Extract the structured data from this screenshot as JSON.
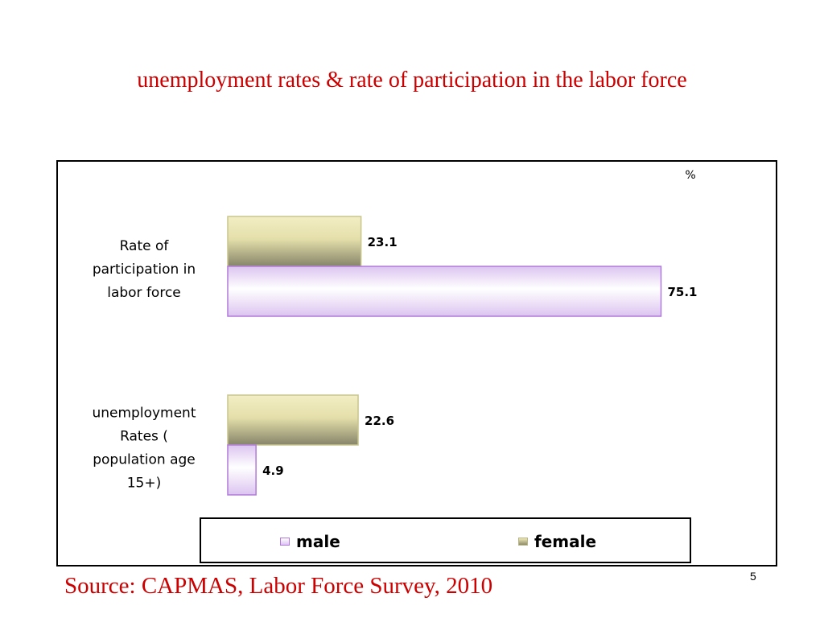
{
  "slide": {
    "title": "unemployment rates & rate of participation in the labor force",
    "source": "Source: CAPMAS, Labor Force Survey, 2010",
    "page_number": "5"
  },
  "chart_data": {
    "type": "bar",
    "orientation": "horizontal",
    "unit_label": "%",
    "categories": [
      [
        "Rate of",
        "participation in",
        "labor force"
      ],
      [
        "unemployment",
        "Rates (",
        "population age",
        "15+)"
      ]
    ],
    "series": [
      {
        "name": "female",
        "values": [
          23.1,
          22.6
        ],
        "labels": [
          "23.1",
          "22.6"
        ],
        "color": "#e8e3b0",
        "stroke": "#c9c58f"
      },
      {
        "name": "male",
        "values": [
          75.1,
          4.9
        ],
        "labels": [
          "75.1",
          "4.9"
        ],
        "color": "#e6d2f6",
        "stroke": "#b07ad8"
      }
    ],
    "xlim": [
      0,
      100
    ],
    "grid": false,
    "legend": {
      "position": "bottom",
      "entries": [
        "male",
        "female"
      ]
    }
  }
}
